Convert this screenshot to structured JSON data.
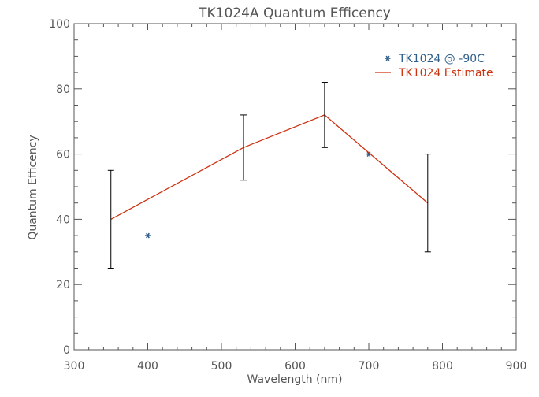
{
  "chart_data": {
    "type": "line",
    "title": "TK1024A Quantum Efficency",
    "xlabel": "Wavelength (nm)",
    "ylabel": "Quantum Efficency",
    "xlim": [
      300,
      900
    ],
    "ylim": [
      0,
      100
    ],
    "xticks": [
      300,
      400,
      500,
      600,
      700,
      800,
      900
    ],
    "yticks": [
      0,
      20,
      40,
      60,
      80,
      100
    ],
    "x_minor_step": 20,
    "y_minor_step": 5,
    "grid": false,
    "legend_position": "top-right",
    "series": [
      {
        "name": "TK1024 @ -90C",
        "kind": "scatter",
        "marker": "asterisk",
        "color": "#2f5f8a",
        "points": [
          {
            "x": 400,
            "y": 35
          },
          {
            "x": 700,
            "y": 60
          }
        ]
      },
      {
        "name": "TK1024 Estimate",
        "kind": "line",
        "color": "#cc3311",
        "points": [
          {
            "x": 350,
            "y": 40,
            "err_low": 25,
            "err_high": 55
          },
          {
            "x": 530,
            "y": 62,
            "err_low": 52,
            "err_high": 72
          },
          {
            "x": 640,
            "y": 72,
            "err_low": 62,
            "err_high": 82
          },
          {
            "x": 780,
            "y": 45,
            "err_low": 30,
            "err_high": 60
          }
        ]
      }
    ],
    "errorbar_color": "#000000"
  }
}
